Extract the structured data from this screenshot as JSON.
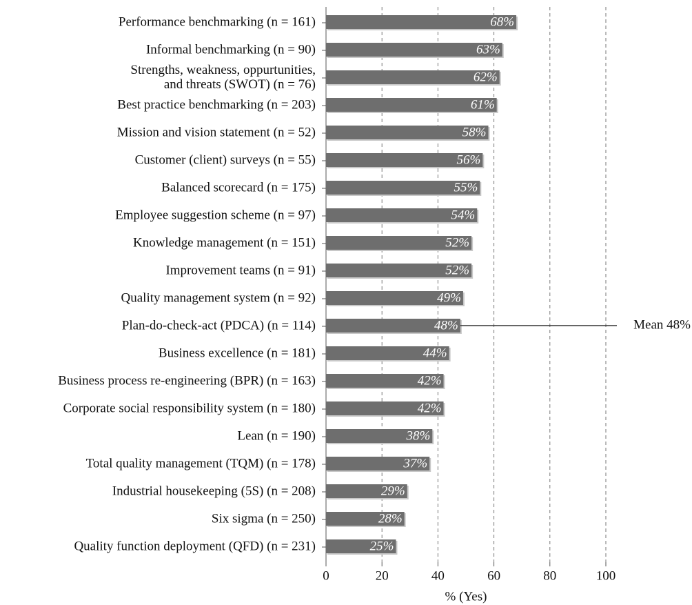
{
  "chart_data": {
    "type": "hbar",
    "categories": [
      "Performance benchmarking (n = 161)",
      "Informal benchmarking (n = 90)",
      [
        "Strengths, weakness, oppurtunities,",
        "and threats (SWOT) (n = 76)"
      ],
      "Best practice benchmarking (n = 203)",
      "Mission and vision statement (n = 52)",
      "Customer (client) surveys (n = 55)",
      "Balanced scorecard (n = 175)",
      "Employee suggestion scheme (n = 97)",
      "Knowledge management (n = 151)",
      "Improvement teams (n = 91)",
      "Quality management system (n = 92)",
      "Plan-do-check-act (PDCA) (n = 114)",
      "Business excellence (n = 181)",
      "Business process re-engineering (BPR) (n = 163)",
      "Corporate social responsibility system (n = 180)",
      "Lean (n = 190)",
      "Total quality management (TQM) (n = 178)",
      "Industrial housekeeping (5S) (n = 208)",
      "Six sigma (n = 250)",
      "Quality function deployment (QFD) (n = 231)"
    ],
    "values": [
      68,
      63,
      62,
      61,
      58,
      56,
      55,
      54,
      52,
      52,
      49,
      48,
      44,
      42,
      42,
      38,
      37,
      29,
      28,
      25
    ],
    "value_labels": [
      "68%",
      "63%",
      "62%",
      "61%",
      "58%",
      "56%",
      "55%",
      "54%",
      "52%",
      "52%",
      "49%",
      "48%",
      "44%",
      "42%",
      "42%",
      "38%",
      "37%",
      "29%",
      "28%",
      "25%"
    ],
    "color": "#6e6e6e",
    "xlim": [
      0,
      100
    ],
    "xticks": [
      0,
      20,
      40,
      60,
      80,
      100
    ],
    "xlabel": "% (Yes)",
    "grid": true,
    "mean": {
      "value": 48,
      "label": "Mean 48%"
    }
  }
}
